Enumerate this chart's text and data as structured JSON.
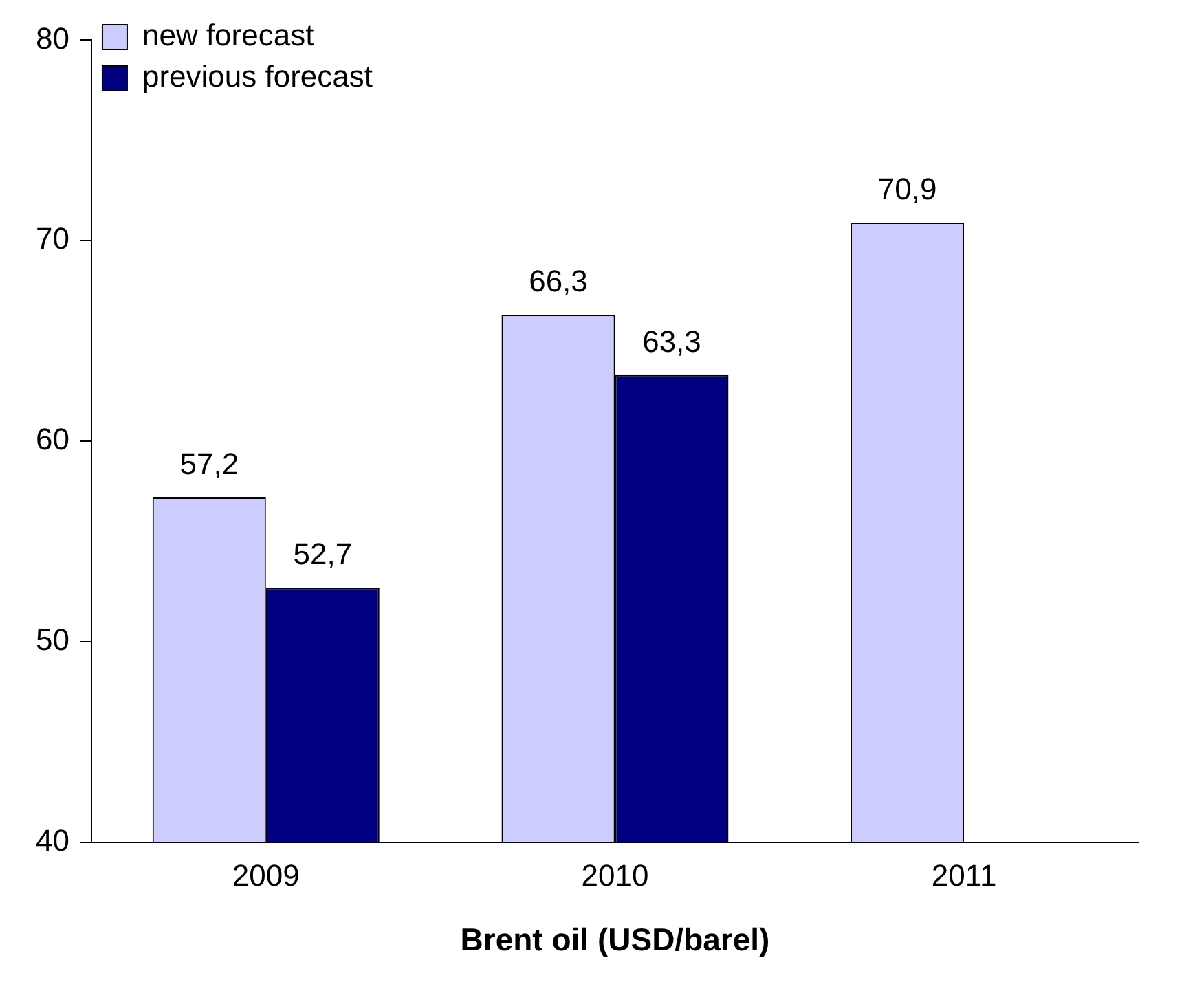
{
  "chart_data": {
    "type": "bar",
    "xlabel": "Brent oil (USD/barel)",
    "categories": [
      "2009",
      "2010",
      "2011"
    ],
    "series": [
      {
        "name": "new forecast",
        "color": "#ccccff",
        "values": [
          57.2,
          66.3,
          70.9
        ],
        "value_labels": [
          "57,2",
          "66,3",
          "70,9"
        ]
      },
      {
        "name": "previous forecast",
        "color": "#000080",
        "values": [
          52.7,
          63.3,
          null
        ],
        "value_labels": [
          "52,7",
          "63,3",
          null
        ]
      }
    ],
    "ylim": [
      40,
      80
    ],
    "yticks": [
      40,
      50,
      60,
      70,
      80
    ],
    "grid": false,
    "legend": "top left"
  }
}
